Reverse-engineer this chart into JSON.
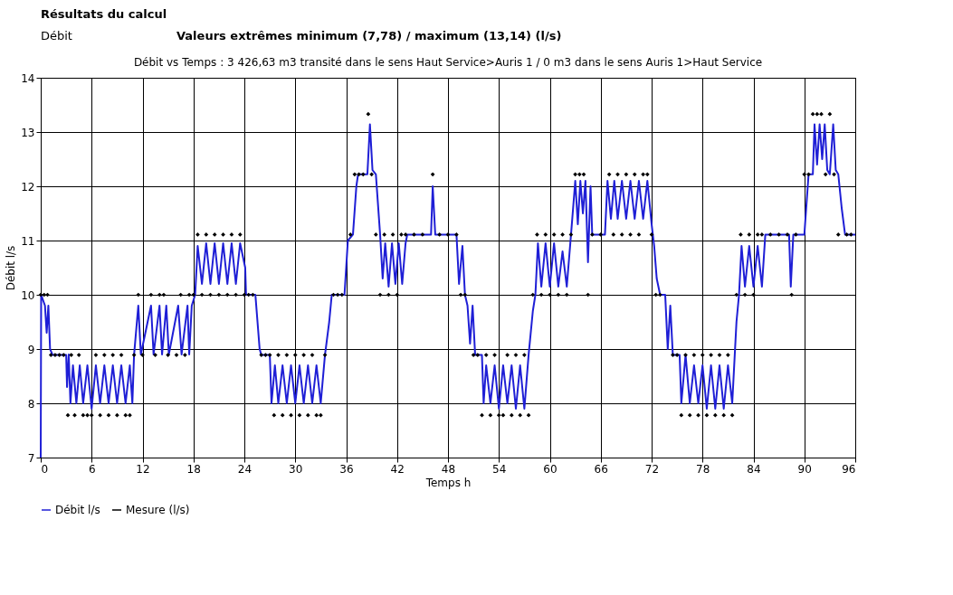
{
  "chart_data": {
    "type": "line",
    "title": "Débit vs Temps : 3 426,63 m3 transité dans le sens Haut Service>Auris 1  /  0 m3 dans le sens Auris 1>Haut Service",
    "annotations": [
      "Résultats du calcul",
      "Débit",
      "Valeurs extrêmes minimum (7,78) / maximum (13,14) (l/s)"
    ],
    "xlabel": "Temps h",
    "ylabel": "Débit l/s",
    "xlim": [
      0,
      96
    ],
    "ylim": [
      7,
      14
    ],
    "xticks": [
      0,
      6,
      12,
      18,
      24,
      30,
      36,
      42,
      48,
      54,
      60,
      66,
      72,
      78,
      84,
      90,
      96
    ],
    "yticks": [
      7,
      8,
      9,
      10,
      11,
      12,
      13,
      14
    ],
    "grid": true,
    "legend": "bottom",
    "series": [
      {
        "name": "Débit l/s",
        "color": "#1f1fd6",
        "line_style": "solid",
        "x": [
          0,
          0.05,
          0.5,
          0.7,
          0.9,
          1.1,
          1.4,
          3,
          3.1,
          3.3,
          3.5,
          3.8,
          4.2,
          4.6,
          5,
          5.5,
          6,
          6.5,
          7,
          7.5,
          8,
          8.5,
          9,
          9.5,
          10,
          10.5,
          10.8,
          11,
          11.5,
          11.8,
          13,
          13.3,
          14,
          14.3,
          14.8,
          15.1,
          16.2,
          16.6,
          17.3,
          17.5,
          17.8,
          18.2,
          18.5,
          19,
          19.5,
          20,
          20.5,
          21,
          21.5,
          22,
          22.5,
          23,
          23.5,
          24.1,
          24.2,
          25.3,
          25.8,
          26,
          27,
          27.2,
          27.6,
          28,
          28.5,
          29,
          29.5,
          30,
          30.5,
          31,
          31.5,
          32,
          32.5,
          33,
          33.5,
          34,
          34.3,
          35.8,
          36.2,
          36.8,
          37.2,
          37.4,
          38.5,
          38.8,
          39.1,
          39.5,
          40,
          40.3,
          40.6,
          41,
          41.4,
          41.8,
          42.2,
          42.6,
          43,
          43.2,
          46,
          46.2,
          46.5,
          49,
          49.3,
          49.7,
          50,
          50.3,
          50.6,
          50.9,
          51.2,
          52,
          52.2,
          52.5,
          53,
          53.5,
          54,
          54.5,
          55,
          55.5,
          56,
          56.5,
          57,
          57.5,
          58,
          58.3,
          58.6,
          59,
          59.5,
          60,
          60.5,
          61,
          61.5,
          62,
          62.5,
          63,
          63.3,
          63.6,
          63.9,
          64.2,
          64.5,
          64.8,
          65,
          66.5,
          66.8,
          67.2,
          67.6,
          68,
          68.5,
          69,
          69.5,
          70,
          70.5,
          71,
          71.5,
          72,
          72.3,
          72.6,
          73,
          73.6,
          73.9,
          74.2,
          74.5,
          75.3,
          75.5,
          76,
          76.5,
          77,
          77.5,
          78,
          78.5,
          79,
          79.5,
          80,
          80.5,
          81,
          81.5,
          82,
          82.3,
          82.6,
          83,
          83.5,
          84,
          84.5,
          85,
          85.4,
          88.2,
          88.4,
          88.7,
          90,
          90.5,
          91,
          91.2,
          91.5,
          91.8,
          92.1,
          92.4,
          92.7,
          93,
          93.4,
          93.7,
          94,
          94.4,
          94.8,
          96
        ],
        "values": [
          7,
          10,
          9.8,
          9.3,
          9.8,
          9,
          8.89,
          8.89,
          8.3,
          8.9,
          8,
          8.7,
          8,
          8.7,
          8,
          8.7,
          7.9,
          8.7,
          8,
          8.7,
          8,
          8.7,
          8,
          8.7,
          8,
          8.7,
          8,
          8.89,
          9.8,
          8.9,
          9.8,
          8.9,
          9.8,
          8.9,
          9.8,
          8.9,
          9.8,
          8.9,
          9.8,
          8.9,
          9.8,
          10,
          10.9,
          10.2,
          10.95,
          10.2,
          10.95,
          10.2,
          10.95,
          10.2,
          10.95,
          10.2,
          10.95,
          10.5,
          10,
          10,
          9,
          8.89,
          8.89,
          8,
          8.7,
          8,
          8.7,
          8,
          8.7,
          8,
          8.7,
          8,
          8.7,
          8,
          8.7,
          8,
          8.89,
          9.5,
          10,
          10,
          11,
          11.11,
          12,
          12.22,
          12.22,
          13.14,
          12.3,
          12.22,
          11.11,
          10.3,
          10.95,
          10.15,
          10.95,
          10.2,
          10.95,
          10.2,
          10.95,
          11.11,
          11.11,
          12,
          11.11,
          11.11,
          10.2,
          10.9,
          10,
          9.8,
          9.1,
          9.8,
          8.89,
          8.89,
          8,
          8.7,
          8,
          8.7,
          7.9,
          8.7,
          8,
          8.7,
          7.9,
          8.7,
          7.9,
          8.89,
          9.7,
          10,
          10.95,
          10.15,
          10.95,
          10.15,
          10.95,
          10.15,
          10.8,
          10.15,
          11.11,
          12.1,
          11.3,
          12.1,
          11.5,
          12.1,
          10.6,
          12,
          11.11,
          11.11,
          12.1,
          11.4,
          12.1,
          11.4,
          12.1,
          11.4,
          12.1,
          11.4,
          12.1,
          11.4,
          12.1,
          11.3,
          10.9,
          10.3,
          10,
          10,
          9,
          9.8,
          8.89,
          8.89,
          8,
          8.89,
          8,
          8.7,
          8,
          8.7,
          7.9,
          8.7,
          7.9,
          8.7,
          7.9,
          8.7,
          8,
          9.5,
          10,
          10.9,
          10.15,
          10.9,
          10.15,
          10.9,
          10.15,
          11.11,
          11.11,
          10.15,
          11.11,
          11.11,
          12.22,
          12.22,
          13.14,
          12.4,
          13.14,
          12.5,
          13.14,
          12.3,
          12.22,
          13.14,
          12.3,
          12.22,
          11.6,
          11.11,
          11.11
        ]
      },
      {
        "name": "Mesure (l/s)",
        "type": "scatter",
        "color": "#000000",
        "marker": "diamond",
        "x": [
          0,
          0.4,
          0.8,
          1.2,
          1.7,
          2.2,
          2.7,
          3.2,
          3.6,
          4,
          4.5,
          5,
          5.5,
          6,
          6.5,
          7,
          7.5,
          8,
          8.5,
          9,
          9.5,
          10,
          10.5,
          11,
          11.5,
          12,
          13,
          13.5,
          14,
          14.5,
          15,
          16,
          16.5,
          17,
          17.5,
          18,
          18.5,
          19,
          19.5,
          20,
          20.5,
          21,
          21.5,
          22,
          22.5,
          23,
          23.5,
          24,
          24.5,
          25,
          26,
          26.5,
          27,
          27.5,
          28,
          28.5,
          29,
          29.5,
          30,
          30.5,
          31,
          31.5,
          32,
          32.5,
          33,
          33.5,
          34.5,
          35,
          35.5,
          36.5,
          37,
          37.5,
          38,
          38.6,
          39,
          39.5,
          40,
          40.5,
          41,
          41.5,
          42,
          42.5,
          43,
          44,
          45,
          46.2,
          47,
          48,
          49,
          49.5,
          50,
          51,
          51.5,
          52,
          52.5,
          53,
          53.5,
          54,
          54.5,
          55,
          55.5,
          56,
          56.5,
          57,
          57.5,
          58,
          58.5,
          59,
          59.5,
          60,
          60.5,
          61,
          61.5,
          62,
          62.5,
          63,
          63.5,
          64,
          64.5,
          65,
          66,
          67,
          67.5,
          68,
          68.5,
          69,
          69.5,
          70,
          70.5,
          71,
          71.5,
          72,
          72.5,
          73,
          74.5,
          75,
          75.5,
          76,
          76.5,
          77,
          77.5,
          78,
          78.5,
          79,
          79.5,
          80,
          80.5,
          81,
          81.5,
          82,
          82.5,
          83,
          83.5,
          84,
          84.5,
          85,
          86,
          87,
          88,
          88.5,
          89,
          90,
          90.5,
          91,
          91.5,
          92,
          92.5,
          93,
          93.5,
          94,
          95,
          95.5
        ],
        "values": [
          10,
          10,
          10,
          8.89,
          8.89,
          8.89,
          8.89,
          7.78,
          8.89,
          7.78,
          8.89,
          7.78,
          7.78,
          7.78,
          8.89,
          7.78,
          8.89,
          7.78,
          8.89,
          7.78,
          8.89,
          7.78,
          7.78,
          8.89,
          10,
          8.89,
          10,
          8.89,
          10,
          10,
          8.89,
          8.89,
          10,
          8.89,
          10,
          10,
          11.11,
          10,
          11.11,
          10,
          11.11,
          10,
          11.11,
          10,
          11.11,
          10,
          11.11,
          10,
          10,
          10,
          8.89,
          8.89,
          8.89,
          7.78,
          8.89,
          7.78,
          8.89,
          7.78,
          8.89,
          7.78,
          8.89,
          7.78,
          8.89,
          7.78,
          7.78,
          8.89,
          10,
          10,
          10,
          11.11,
          12.22,
          12.22,
          12.22,
          13.33,
          12.22,
          11.11,
          10,
          11.11,
          10,
          11.11,
          10,
          11.11,
          11.11,
          11.11,
          11.11,
          12.22,
          11.11,
          11.11,
          11.11,
          10,
          10,
          8.89,
          8.89,
          7.78,
          8.89,
          7.78,
          8.89,
          7.78,
          7.78,
          8.89,
          7.78,
          8.89,
          7.78,
          8.89,
          7.78,
          10,
          11.11,
          10,
          11.11,
          10,
          11.11,
          10,
          11.11,
          10,
          11.11,
          12.22,
          12.22,
          12.22,
          10,
          11.11,
          11.11,
          12.22,
          11.11,
          12.22,
          11.11,
          12.22,
          11.11,
          12.22,
          11.11,
          12.22,
          12.22,
          11.11,
          10,
          10,
          8.89,
          8.89,
          7.78,
          8.89,
          7.78,
          8.89,
          7.78,
          8.89,
          7.78,
          8.89,
          7.78,
          8.89,
          7.78,
          8.89,
          7.78,
          10,
          11.11,
          10,
          11.11,
          10,
          11.11,
          11.11,
          11.11,
          11.11,
          11.11,
          10,
          11.11,
          12.22,
          12.22,
          13.33,
          13.33,
          13.33,
          12.22,
          13.33,
          12.22,
          11.11,
          11.11,
          11.11
        ]
      }
    ]
  }
}
